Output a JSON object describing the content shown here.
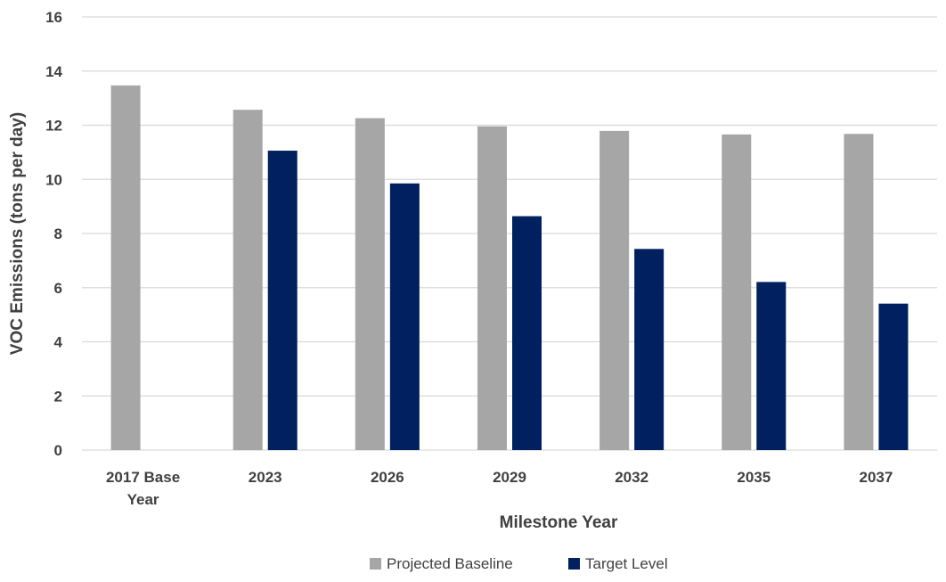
{
  "chart_data": {
    "type": "bar",
    "title": "",
    "xlabel": "Milestone Year",
    "ylabel": "VOC Emissions (tons per day)",
    "categories": [
      "2017 Base Year",
      "2023",
      "2026",
      "2029",
      "2032",
      "2035",
      "2037"
    ],
    "category_lines": [
      [
        "2017 Base",
        "Year"
      ],
      [
        "2023"
      ],
      [
        "2026"
      ],
      [
        "2029"
      ],
      [
        "2032"
      ],
      [
        "2035"
      ],
      [
        "2037"
      ]
    ],
    "series": [
      {
        "name": "Projected Baseline",
        "color": "#a6a6a6",
        "values": [
          13.47,
          12.57,
          12.26,
          11.96,
          11.79,
          11.66,
          11.68
        ]
      },
      {
        "name": "Target Level",
        "color": "#002060",
        "values": [
          null,
          11.06,
          9.85,
          8.64,
          7.43,
          6.21,
          5.41
        ]
      }
    ],
    "ylim": [
      0,
      16
    ],
    "yticks": [
      "0",
      "2",
      "4",
      "6",
      "8",
      "10",
      "12",
      "14",
      "16"
    ],
    "grid": true,
    "legend": "bottom"
  }
}
